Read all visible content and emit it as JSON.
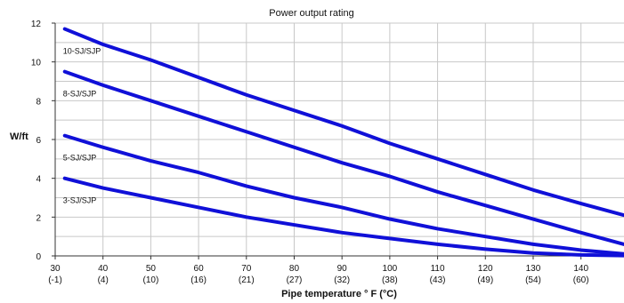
{
  "chart_data": {
    "type": "line",
    "title": "Power output rating",
    "xlabel": "Pipe temperature ° F (°C)",
    "ylabel": "W/ft",
    "xlim": [
      30,
      149
    ],
    "ylim": [
      0,
      12
    ],
    "grid": true,
    "line_color": "#1010d8",
    "x_ticks": [
      {
        "value": 30,
        "label": "30",
        "sublabel": "(-1)"
      },
      {
        "value": 40,
        "label": "40",
        "sublabel": "(4)"
      },
      {
        "value": 50,
        "label": "50",
        "sublabel": "(10)"
      },
      {
        "value": 60,
        "label": "60",
        "sublabel": "(16)"
      },
      {
        "value": 70,
        "label": "70",
        "sublabel": "(21)"
      },
      {
        "value": 80,
        "label": "80",
        "sublabel": "(27)"
      },
      {
        "value": 90,
        "label": "90",
        "sublabel": "(32)"
      },
      {
        "value": 100,
        "label": "100",
        "sublabel": "(38)"
      },
      {
        "value": 110,
        "label": "110",
        "sublabel": "(43)"
      },
      {
        "value": 120,
        "label": "120",
        "sublabel": "(49)"
      },
      {
        "value": 130,
        "label": "130",
        "sublabel": "(54)"
      },
      {
        "value": 140,
        "label": "140",
        "sublabel": "(60)"
      }
    ],
    "y_ticks": [
      0,
      2,
      4,
      6,
      8,
      10,
      12
    ],
    "series": [
      {
        "name": "10-SJ/SJP",
        "x": [
          32,
          40,
          50,
          60,
          70,
          80,
          90,
          100,
          110,
          120,
          130,
          140,
          149
        ],
        "y": [
          11.7,
          10.9,
          10.1,
          9.2,
          8.3,
          7.5,
          6.7,
          5.8,
          5.0,
          4.2,
          3.4,
          2.7,
          2.1
        ]
      },
      {
        "name": "8-SJ/SJP",
        "x": [
          32,
          40,
          50,
          60,
          70,
          80,
          90,
          100,
          110,
          120,
          130,
          140,
          149
        ],
        "y": [
          9.5,
          8.8,
          8.0,
          7.2,
          6.4,
          5.6,
          4.8,
          4.1,
          3.3,
          2.6,
          1.9,
          1.2,
          0.6
        ]
      },
      {
        "name": "5-SJ/SJP",
        "x": [
          32,
          40,
          50,
          60,
          70,
          80,
          90,
          100,
          110,
          120,
          130,
          140,
          149
        ],
        "y": [
          6.2,
          5.6,
          4.9,
          4.3,
          3.6,
          3.0,
          2.5,
          1.9,
          1.4,
          1.0,
          0.6,
          0.3,
          0.1
        ]
      },
      {
        "name": "3-SJ/SJP",
        "x": [
          32,
          40,
          50,
          60,
          70,
          80,
          90,
          100,
          110,
          120,
          130,
          140,
          149
        ],
        "y": [
          4.0,
          3.5,
          3.0,
          2.5,
          2.0,
          1.6,
          1.2,
          0.9,
          0.6,
          0.35,
          0.15,
          0.05,
          0.02
        ]
      }
    ]
  }
}
